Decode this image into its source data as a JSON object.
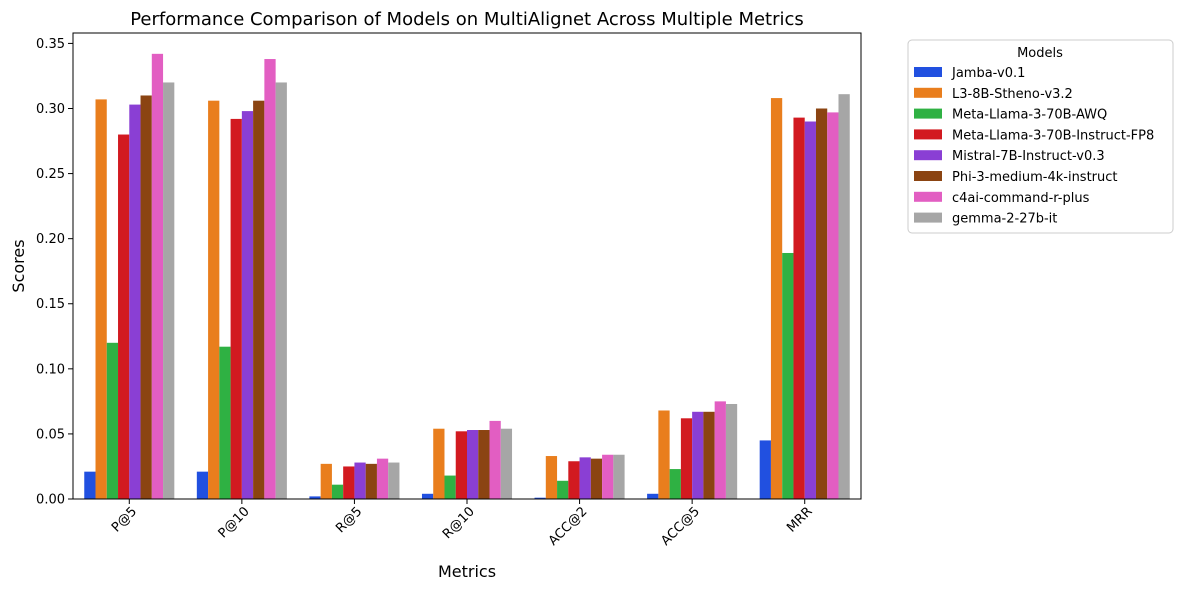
{
  "chart_data": {
    "type": "bar",
    "title": "Performance Comparison of Models on MultiAlignet Across Multiple Metrics",
    "xlabel": "Metrics",
    "ylabel": "Scores",
    "ylim": [
      0,
      0.358
    ],
    "yticks": [
      "0.00",
      "0.05",
      "0.10",
      "0.15",
      "0.20",
      "0.25",
      "0.30",
      "0.35"
    ],
    "categories": [
      "P@5",
      "P@10",
      "R@5",
      "R@10",
      "ACC@2",
      "ACC@5",
      "MRR"
    ],
    "legend_title": "Models",
    "legend_position": "outside-top-right",
    "grid": false,
    "series": [
      {
        "name": "Jamba-v0.1",
        "color": "#2150e0",
        "values": [
          0.021,
          0.021,
          0.002,
          0.004,
          0.001,
          0.004,
          0.045
        ]
      },
      {
        "name": "L3-8B-Stheno-v3.2",
        "color": "#e97e1d",
        "values": [
          0.307,
          0.306,
          0.027,
          0.054,
          0.033,
          0.068,
          0.308
        ]
      },
      {
        "name": "Meta-Llama-3-70B-AWQ",
        "color": "#2fb143",
        "values": [
          0.12,
          0.117,
          0.011,
          0.018,
          0.014,
          0.023,
          0.189
        ]
      },
      {
        "name": "Meta-Llama-3-70B-Instruct-FP8",
        "color": "#d21a20",
        "values": [
          0.28,
          0.292,
          0.025,
          0.052,
          0.029,
          0.062,
          0.293
        ]
      },
      {
        "name": "Mistral-7B-Instruct-v0.3",
        "color": "#8a3fd4",
        "values": [
          0.303,
          0.298,
          0.028,
          0.053,
          0.032,
          0.067,
          0.29
        ]
      },
      {
        "name": "Phi-3-medium-4k-instruct",
        "color": "#8b4412",
        "values": [
          0.31,
          0.306,
          0.027,
          0.053,
          0.031,
          0.067,
          0.3
        ]
      },
      {
        "name": "c4ai-command-r-plus",
        "color": "#e25ec2",
        "values": [
          0.342,
          0.338,
          0.031,
          0.06,
          0.034,
          0.075,
          0.297
        ]
      },
      {
        "name": "gemma-2-27b-it",
        "color": "#a6a6a6",
        "values": [
          0.32,
          0.32,
          0.028,
          0.054,
          0.034,
          0.073,
          0.311
        ]
      }
    ]
  }
}
